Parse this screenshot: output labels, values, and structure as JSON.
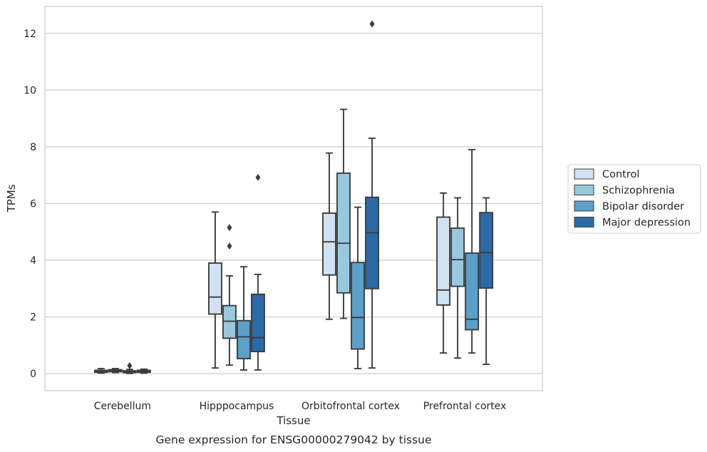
{
  "caption": "Gene expression for ENSG00000279042 by tissue",
  "chart_data": {
    "type": "box",
    "title": "",
    "xlabel": "Tissue",
    "ylabel": "TPMs",
    "ylim": [
      -0.6,
      12.95
    ],
    "yticks": [
      0,
      2,
      4,
      6,
      8,
      10,
      12
    ],
    "grid": "horizontal",
    "legend_position": "right",
    "categories": [
      "Cerebellum",
      "Hipppocampus",
      "Orbitofrontal cortex",
      "Prefrontal cortex"
    ],
    "series": [
      {
        "name": "Control",
        "color": "#d1e2f2",
        "boxes": [
          {
            "whislo": 0.02,
            "q1": 0.05,
            "med": 0.08,
            "q3": 0.12,
            "whishi": 0.18,
            "fliers": []
          },
          {
            "whislo": 0.2,
            "q1": 2.1,
            "med": 2.7,
            "q3": 3.9,
            "whishi": 5.7,
            "fliers": []
          },
          {
            "whislo": 1.92,
            "q1": 3.48,
            "med": 4.65,
            "q3": 5.66,
            "whishi": 7.78,
            "fliers": []
          },
          {
            "whislo": 0.73,
            "q1": 2.42,
            "med": 2.95,
            "q3": 5.52,
            "whishi": 6.37,
            "fliers": []
          }
        ]
      },
      {
        "name": "Schizophrenia",
        "color": "#9ac7e0",
        "boxes": [
          {
            "whislo": 0.04,
            "q1": 0.07,
            "med": 0.1,
            "q3": 0.14,
            "whishi": 0.18,
            "fliers": []
          },
          {
            "whislo": 0.3,
            "q1": 1.25,
            "med": 1.85,
            "q3": 2.4,
            "whishi": 3.45,
            "fliers": [
              4.5,
              5.15
            ]
          },
          {
            "whislo": 1.95,
            "q1": 2.85,
            "med": 4.6,
            "q3": 7.07,
            "whishi": 9.32,
            "fliers": []
          },
          {
            "whislo": 0.55,
            "q1": 3.08,
            "med": 4.02,
            "q3": 5.13,
            "whishi": 6.2,
            "fliers": []
          }
        ]
      },
      {
        "name": "Bipolar disorder",
        "color": "#5b9fcb",
        "boxes": [
          {
            "whislo": 0.01,
            "q1": 0.04,
            "med": 0.07,
            "q3": 0.1,
            "whishi": 0.15,
            "fliers": [
              0.28
            ]
          },
          {
            "whislo": 0.13,
            "q1": 0.53,
            "med": 1.3,
            "q3": 1.87,
            "whishi": 3.77,
            "fliers": []
          },
          {
            "whislo": 0.18,
            "q1": 0.87,
            "med": 1.98,
            "q3": 3.92,
            "whishi": 5.87,
            "fliers": []
          },
          {
            "whislo": 0.73,
            "q1": 1.55,
            "med": 1.92,
            "q3": 4.25,
            "whishi": 7.9,
            "fliers": []
          }
        ]
      },
      {
        "name": "Major depression",
        "color": "#2b6aa9",
        "boxes": [
          {
            "whislo": 0.02,
            "q1": 0.05,
            "med": 0.09,
            "q3": 0.12,
            "whishi": 0.16,
            "fliers": []
          },
          {
            "whislo": 0.13,
            "q1": 0.78,
            "med": 1.27,
            "q3": 2.8,
            "whishi": 3.5,
            "fliers": [
              6.92
            ]
          },
          {
            "whislo": 0.2,
            "q1": 3.0,
            "med": 4.97,
            "q3": 6.22,
            "whishi": 8.3,
            "fliers": [
              12.33
            ]
          },
          {
            "whislo": 0.33,
            "q1": 3.02,
            "med": 4.27,
            "q3": 5.68,
            "whishi": 6.2,
            "fliers": []
          }
        ]
      }
    ]
  }
}
